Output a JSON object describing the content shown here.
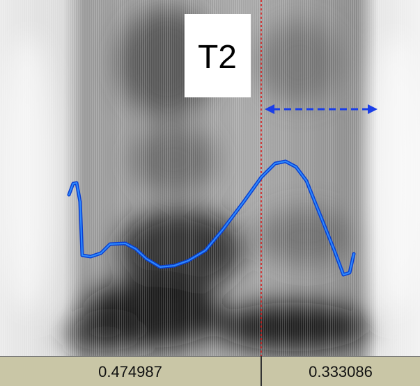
{
  "tier_label": "T2",
  "intervals": [
    {
      "duration": 0.474987
    },
    {
      "duration": 0.333086
    }
  ]
}
